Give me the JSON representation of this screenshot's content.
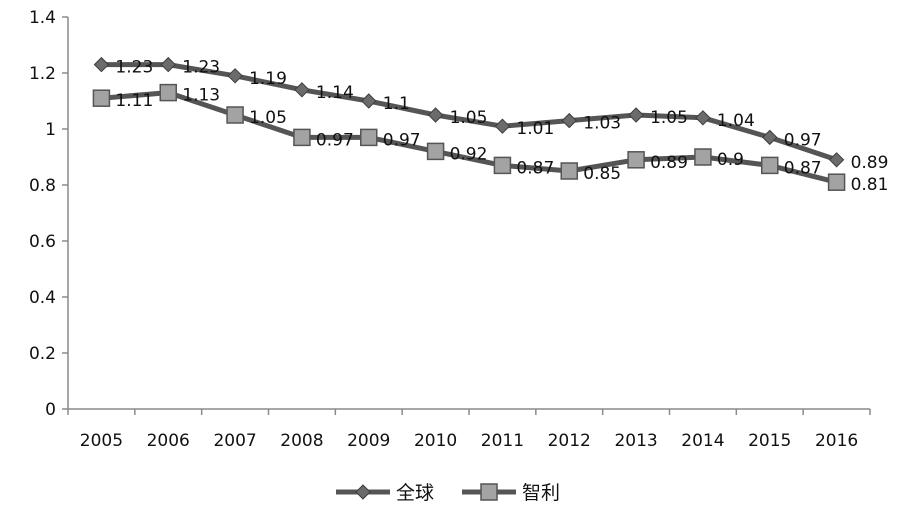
{
  "chart_data": {
    "type": "line",
    "categories": [
      "2005",
      "2006",
      "2007",
      "2008",
      "2009",
      "2010",
      "2011",
      "2012",
      "2013",
      "2014",
      "2015",
      "2016"
    ],
    "series": [
      {
        "name": "全球",
        "marker": "diamond",
        "color": "#555555",
        "values": [
          1.23,
          1.23,
          1.19,
          1.14,
          1.1,
          1.05,
          1.01,
          1.03,
          1.05,
          1.04,
          0.97,
          0.89
        ],
        "labels": [
          "1.23",
          "1.23",
          "1.19",
          "1.14",
          "1.1",
          "1.05",
          "1.01",
          "1.03",
          "1.05",
          "1.04",
          "0.97",
          "0.89"
        ]
      },
      {
        "name": "智利",
        "marker": "square",
        "color": "#555555",
        "values": [
          1.11,
          1.13,
          1.05,
          0.97,
          0.97,
          0.92,
          0.87,
          0.85,
          0.89,
          0.9,
          0.87,
          0.81
        ],
        "labels": [
          "1.11",
          "1.13",
          "1.05",
          "0.97",
          "0.97",
          "0.92",
          "0.87",
          "0.85",
          "0.89",
          "0.9",
          "0.87",
          "0.81"
        ]
      }
    ],
    "y_ticks": [
      "0",
      "0.2",
      "0.4",
      "0.6",
      "0.8",
      "1",
      "1.2",
      "1.4"
    ],
    "ylim": [
      0,
      1.4
    ],
    "grid": false,
    "legend_position": "bottom"
  }
}
